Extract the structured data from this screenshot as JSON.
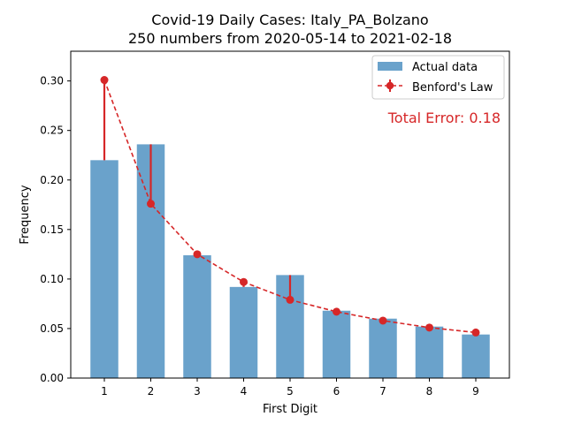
{
  "chart_data": {
    "type": "bar",
    "title_line1": "Covid-19 Daily Cases: Italy_PA_Bolzano",
    "title_line2": "250 numbers from 2020-05-14 to 2021-02-18",
    "xlabel": "First Digit",
    "ylabel": "Frequency",
    "categories": [
      "1",
      "2",
      "3",
      "4",
      "5",
      "6",
      "7",
      "8",
      "9"
    ],
    "ylim": [
      0,
      0.33
    ],
    "yticks": [
      "0.00",
      "0.05",
      "0.10",
      "0.15",
      "0.20",
      "0.25",
      "0.30"
    ],
    "series": [
      {
        "name": "Actual data",
        "kind": "bar",
        "color": "#6aa2cb",
        "values": [
          0.22,
          0.236,
          0.124,
          0.092,
          0.104,
          0.068,
          0.06,
          0.052,
          0.044
        ]
      },
      {
        "name": "Benford's Law",
        "kind": "line",
        "color": "#d62728",
        "values": [
          0.301,
          0.176,
          0.125,
          0.097,
          0.079,
          0.067,
          0.058,
          0.051,
          0.046
        ]
      }
    ],
    "annotation": "Total Error: 0.18",
    "legend_position": "top-right",
    "grid": false
  }
}
